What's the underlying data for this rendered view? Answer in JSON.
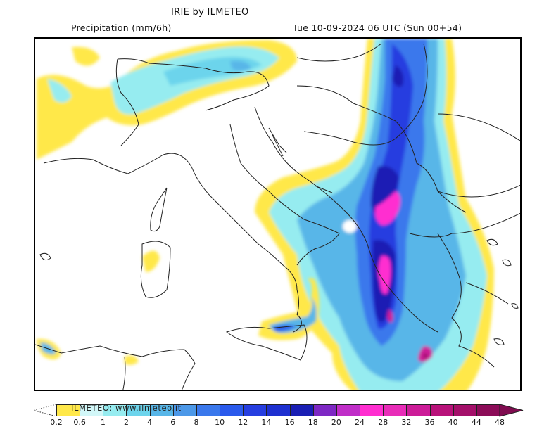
{
  "header": {
    "title": "IRIE by ILMETEO",
    "variable": "Precipitation (mm/6h)",
    "valid_time": "Tue 10-09-2024 06 UTC (Sun 00+54)"
  },
  "watermark": "ILMETEO: www.ilmeteo.it",
  "colorbar": {
    "unit": "mm/6h",
    "labels": [
      "0.2",
      "0.6",
      "1",
      "2",
      "4",
      "6",
      "8",
      "10",
      "12",
      "14",
      "16",
      "18",
      "20",
      "24",
      "28",
      "32",
      "36",
      "40",
      "44",
      "48"
    ],
    "colors": [
      "#ffe84a",
      "#d2f7f8",
      "#96ecf0",
      "#6cd4ec",
      "#58b6e8",
      "#4c98e8",
      "#3a78ec",
      "#2a5aec",
      "#263ee0",
      "#1e30d0",
      "#1a1fb4",
      "#7e28c4",
      "#c02ec8",
      "#ff2ed0",
      "#e82cb8",
      "#cc1c98",
      "#b8127a",
      "#a4106a",
      "#8c0c58"
    ],
    "over_color": "#800c50"
  },
  "map": {
    "region": "Central Mediterranean / Italy / Balkans",
    "max_precip_area": "Albania / Western Greece",
    "features": [
      "Corsica",
      "Sardinia",
      "Sicily",
      "Italian peninsula",
      "Adriatic Sea",
      "Balkans",
      "Greece",
      "Tunisia coast",
      "Alps"
    ]
  }
}
